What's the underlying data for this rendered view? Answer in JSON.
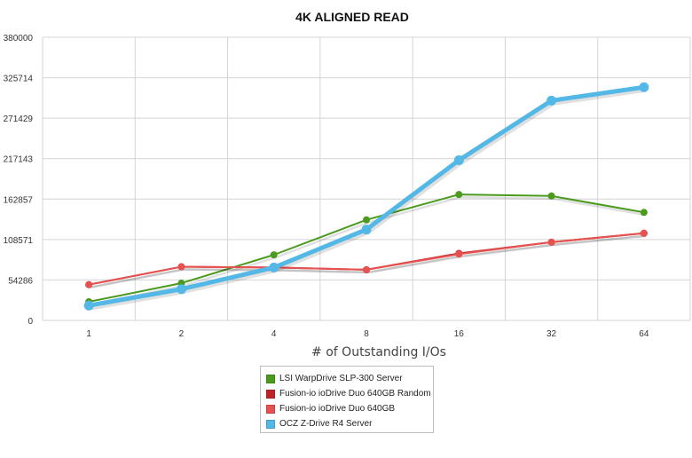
{
  "chart_data": {
    "type": "line",
    "title": "4K ALIGNED READ",
    "xlabel": "# of Outstanding I/Os",
    "ylabel": "",
    "categories": [
      "1",
      "2",
      "4",
      "8",
      "16",
      "32",
      "64"
    ],
    "y_ticks": [
      "0",
      "54286",
      "108571",
      "162857",
      "217143",
      "271429",
      "325714",
      "380000"
    ],
    "ylim": [
      0,
      380000
    ],
    "grid": true,
    "legend_position": "bottom",
    "series": [
      {
        "name": "LSI WarpDrive SLP-300 Server",
        "color": "#4a9a1e",
        "values": [
          25000,
          50000,
          88000,
          135000,
          169000,
          167000,
          145000
        ]
      },
      {
        "name": "Fusion-io ioDrive Duo 640GB Random",
        "color": "#c0232a",
        "values": [
          48000,
          72000,
          71000,
          68000,
          90000,
          105000,
          117000
        ]
      },
      {
        "name": "Fusion-io ioDrive Duo 640GB",
        "color": "#e6524f",
        "values": [
          48000,
          72000,
          71000,
          68000,
          89000,
          105000,
          117000
        ]
      },
      {
        "name": "OCZ Z-Drive R4 Server",
        "color": "#54b8e6",
        "values": [
          20000,
          42000,
          71000,
          122000,
          215000,
          295000,
          313000
        ]
      }
    ]
  }
}
